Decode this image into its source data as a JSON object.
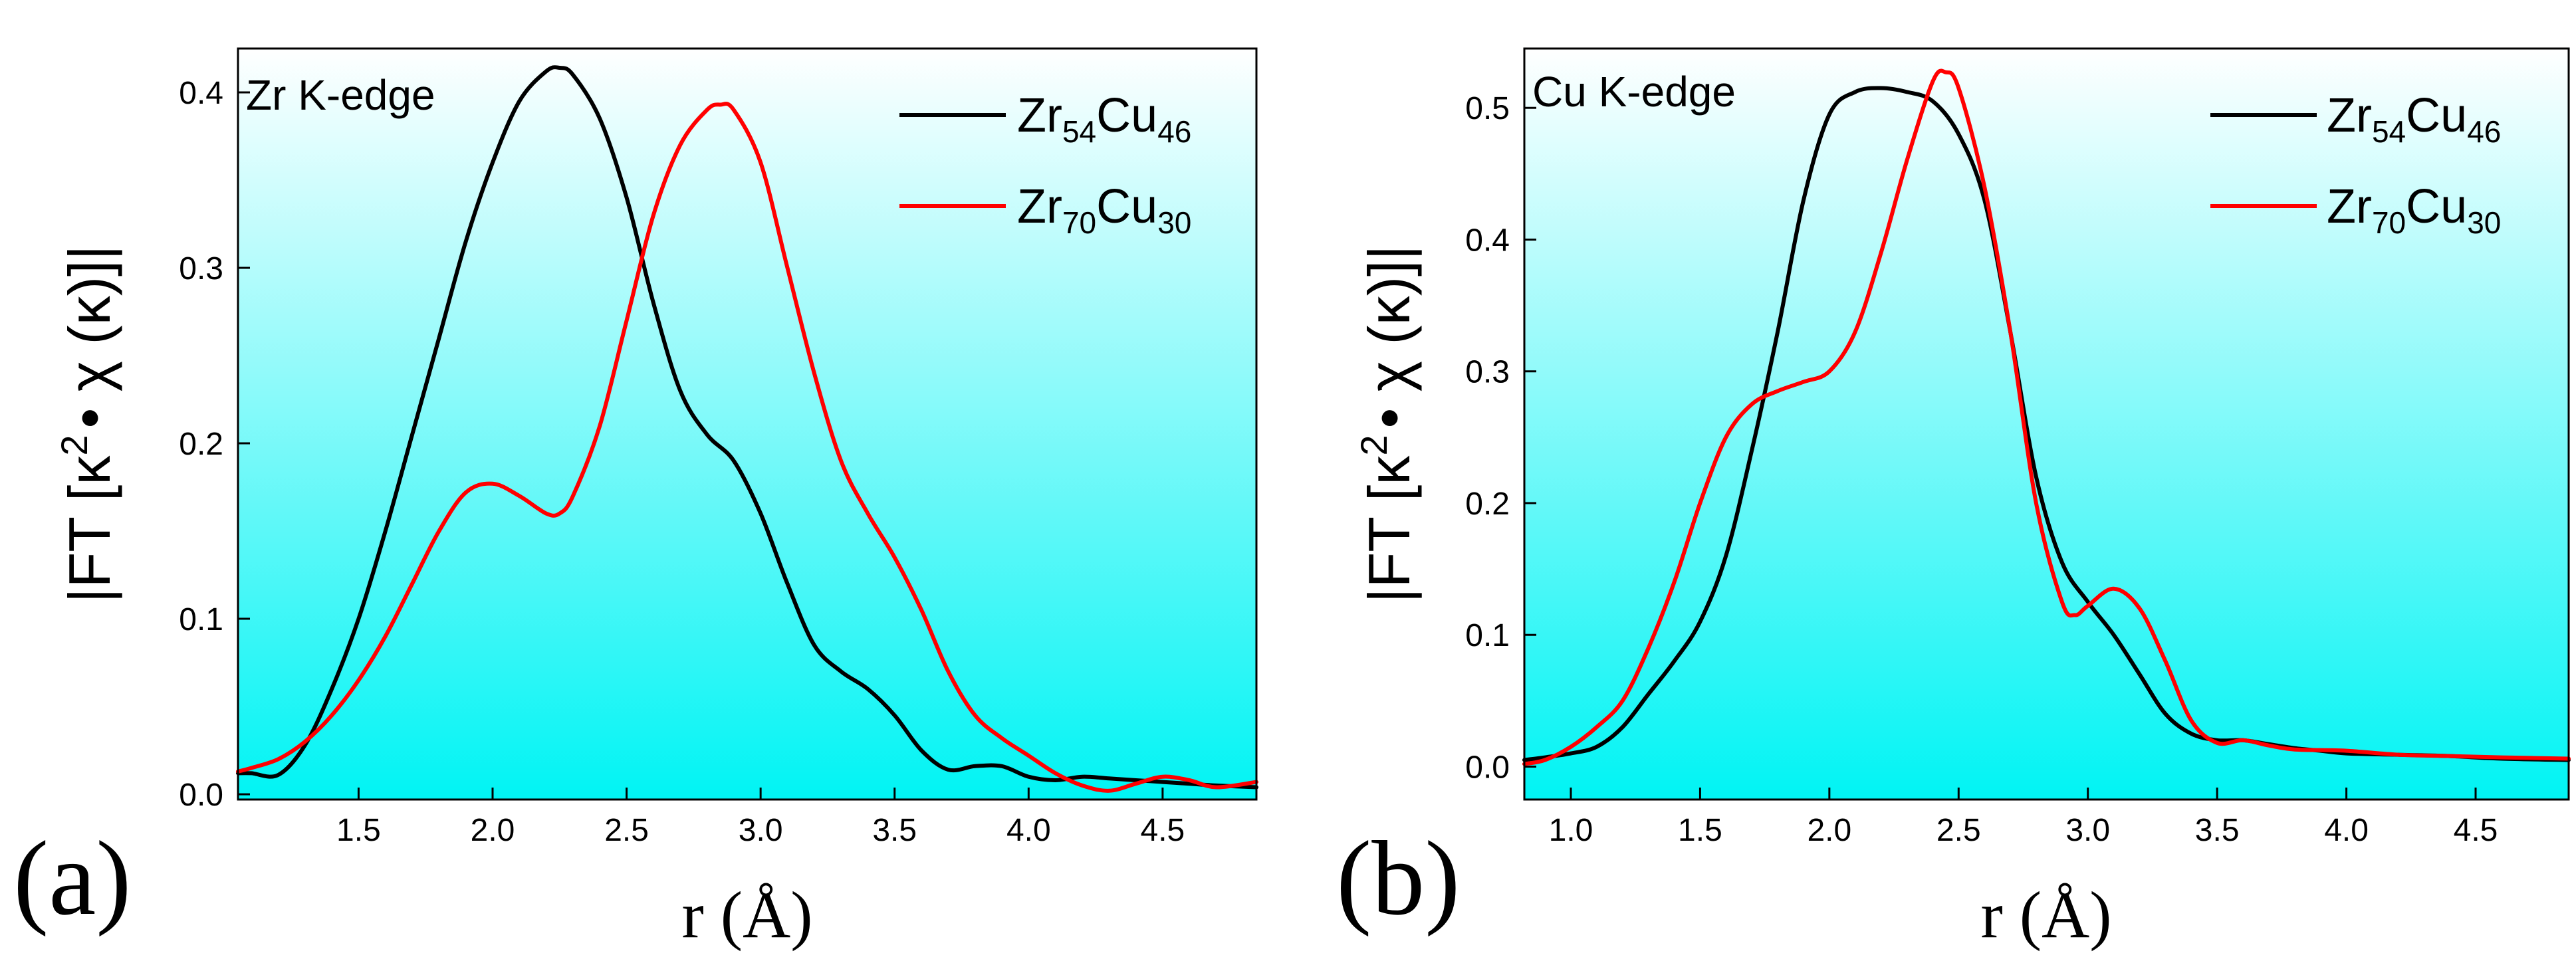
{
  "chart_data": [
    {
      "type": "line",
      "panel_letter": "(a)",
      "title": "Zr K-edge",
      "xlabel": "r (Å)",
      "ylabel": {
        "base": "|FT [κ",
        "sup": "2",
        "rest": "• χ (κ)]|"
      },
      "xlim": [
        1.05,
        4.85
      ],
      "ylim": [
        -0.003,
        0.425
      ],
      "xticks": [
        1.5,
        2.0,
        2.5,
        3.0,
        3.5,
        4.0,
        4.5
      ],
      "xtick_labels": [
        "1.5",
        "2.0",
        "2.5",
        "3.0",
        "3.5",
        "4.0",
        "4.5"
      ],
      "yticks": [
        0.0,
        0.1,
        0.2,
        0.3,
        0.4
      ],
      "ytick_labels": [
        "0.0",
        "0.1",
        "0.2",
        "0.3",
        "0.4"
      ],
      "legend_position": "top-right",
      "series": [
        {
          "name": "Zr54Cu46",
          "label_parts": [
            "Zr",
            "54",
            "Cu",
            "46"
          ],
          "color": "#000000",
          "x": [
            1.05,
            1.1,
            1.2,
            1.3,
            1.4,
            1.5,
            1.6,
            1.7,
            1.8,
            1.9,
            2.0,
            2.1,
            2.2,
            2.25,
            2.3,
            2.4,
            2.5,
            2.6,
            2.7,
            2.8,
            2.9,
            3.0,
            3.1,
            3.2,
            3.3,
            3.4,
            3.5,
            3.6,
            3.7,
            3.8,
            3.9,
            4.0,
            4.1,
            4.2,
            4.3,
            4.4,
            4.5,
            4.6,
            4.7,
            4.85
          ],
          "y": [
            0.012,
            0.012,
            0.011,
            0.028,
            0.06,
            0.1,
            0.15,
            0.205,
            0.26,
            0.315,
            0.36,
            0.395,
            0.412,
            0.414,
            0.41,
            0.385,
            0.34,
            0.28,
            0.23,
            0.205,
            0.19,
            0.16,
            0.12,
            0.085,
            0.07,
            0.06,
            0.045,
            0.025,
            0.014,
            0.016,
            0.016,
            0.01,
            0.008,
            0.01,
            0.009,
            0.008,
            0.007,
            0.006,
            0.005,
            0.004
          ]
        },
        {
          "name": "Zr70Cu30",
          "label_parts": [
            "Zr",
            "70",
            "Cu",
            "30"
          ],
          "color": "#ff0000",
          "x": [
            1.05,
            1.1,
            1.2,
            1.3,
            1.4,
            1.5,
            1.6,
            1.7,
            1.8,
            1.9,
            2.0,
            2.1,
            2.2,
            2.25,
            2.3,
            2.4,
            2.5,
            2.6,
            2.7,
            2.8,
            2.85,
            2.9,
            3.0,
            3.1,
            3.2,
            3.3,
            3.4,
            3.5,
            3.6,
            3.7,
            3.8,
            3.9,
            4.0,
            4.1,
            4.2,
            4.3,
            4.4,
            4.5,
            4.6,
            4.7,
            4.85
          ],
          "y": [
            0.013,
            0.015,
            0.02,
            0.03,
            0.045,
            0.065,
            0.09,
            0.12,
            0.15,
            0.172,
            0.177,
            0.17,
            0.16,
            0.16,
            0.17,
            0.21,
            0.27,
            0.33,
            0.37,
            0.39,
            0.393,
            0.39,
            0.36,
            0.3,
            0.24,
            0.19,
            0.16,
            0.135,
            0.105,
            0.07,
            0.045,
            0.032,
            0.022,
            0.012,
            0.005,
            0.002,
            0.006,
            0.01,
            0.008,
            0.004,
            0.007
          ]
        }
      ]
    },
    {
      "type": "line",
      "panel_letter": "(b)",
      "title": "Cu K-edge",
      "xlabel": "r (Å)",
      "ylabel": {
        "base": "|FT [κ",
        "sup": "2",
        "rest": "• χ (κ)]|"
      },
      "xlim": [
        0.82,
        4.86
      ],
      "ylim": [
        -0.025,
        0.545
      ],
      "xticks": [
        1.0,
        1.5,
        2.0,
        2.5,
        3.0,
        3.5,
        4.0,
        4.5
      ],
      "xtick_labels": [
        "1.0",
        "1.5",
        "2.0",
        "2.5",
        "3.0",
        "3.5",
        "4.0",
        "4.5"
      ],
      "yticks": [
        0.0,
        0.1,
        0.2,
        0.3,
        0.4,
        0.5
      ],
      "ytick_labels": [
        "0.0",
        "0.1",
        "0.2",
        "0.3",
        "0.4",
        "0.5"
      ],
      "legend_position": "top-right",
      "series": [
        {
          "name": "Zr54Cu46",
          "label_parts": [
            "Zr",
            "54",
            "Cu",
            "46"
          ],
          "color": "#000000",
          "x": [
            0.82,
            0.9,
            1.0,
            1.1,
            1.2,
            1.3,
            1.4,
            1.5,
            1.6,
            1.7,
            1.8,
            1.9,
            2.0,
            2.1,
            2.2,
            2.3,
            2.4,
            2.5,
            2.6,
            2.7,
            2.8,
            2.9,
            3.0,
            3.1,
            3.2,
            3.3,
            3.4,
            3.5,
            3.6,
            3.7,
            3.8,
            3.9,
            4.0,
            4.2,
            4.4,
            4.6,
            4.86
          ],
          "y": [
            0.005,
            0.007,
            0.01,
            0.015,
            0.03,
            0.055,
            0.08,
            0.11,
            0.16,
            0.24,
            0.33,
            0.43,
            0.495,
            0.512,
            0.515,
            0.512,
            0.505,
            0.48,
            0.43,
            0.33,
            0.22,
            0.155,
            0.125,
            0.1,
            0.07,
            0.04,
            0.025,
            0.02,
            0.02,
            0.017,
            0.014,
            0.012,
            0.01,
            0.009,
            0.008,
            0.006,
            0.005
          ]
        },
        {
          "name": "Zr70Cu30",
          "label_parts": [
            "Zr",
            "70",
            "Cu",
            "30"
          ],
          "color": "#ff0000",
          "x": [
            0.82,
            0.9,
            1.0,
            1.1,
            1.2,
            1.3,
            1.4,
            1.5,
            1.6,
            1.7,
            1.8,
            1.9,
            2.0,
            2.1,
            2.2,
            2.3,
            2.4,
            2.45,
            2.5,
            2.6,
            2.7,
            2.8,
            2.9,
            2.95,
            3.0,
            3.1,
            3.2,
            3.3,
            3.4,
            3.5,
            3.6,
            3.7,
            3.8,
            4.0,
            4.2,
            4.4,
            4.6,
            4.86
          ],
          "y": [
            0.002,
            0.005,
            0.015,
            0.03,
            0.05,
            0.09,
            0.14,
            0.2,
            0.25,
            0.275,
            0.285,
            0.292,
            0.3,
            0.33,
            0.39,
            0.46,
            0.52,
            0.527,
            0.515,
            0.44,
            0.33,
            0.2,
            0.125,
            0.115,
            0.122,
            0.135,
            0.12,
            0.08,
            0.035,
            0.018,
            0.02,
            0.016,
            0.013,
            0.012,
            0.009,
            0.008,
            0.007,
            0.006
          ]
        }
      ]
    }
  ],
  "colors": {
    "gradient_top": "#ffffff",
    "gradient_bottom": "#00f4f4",
    "frame": "#000000"
  }
}
